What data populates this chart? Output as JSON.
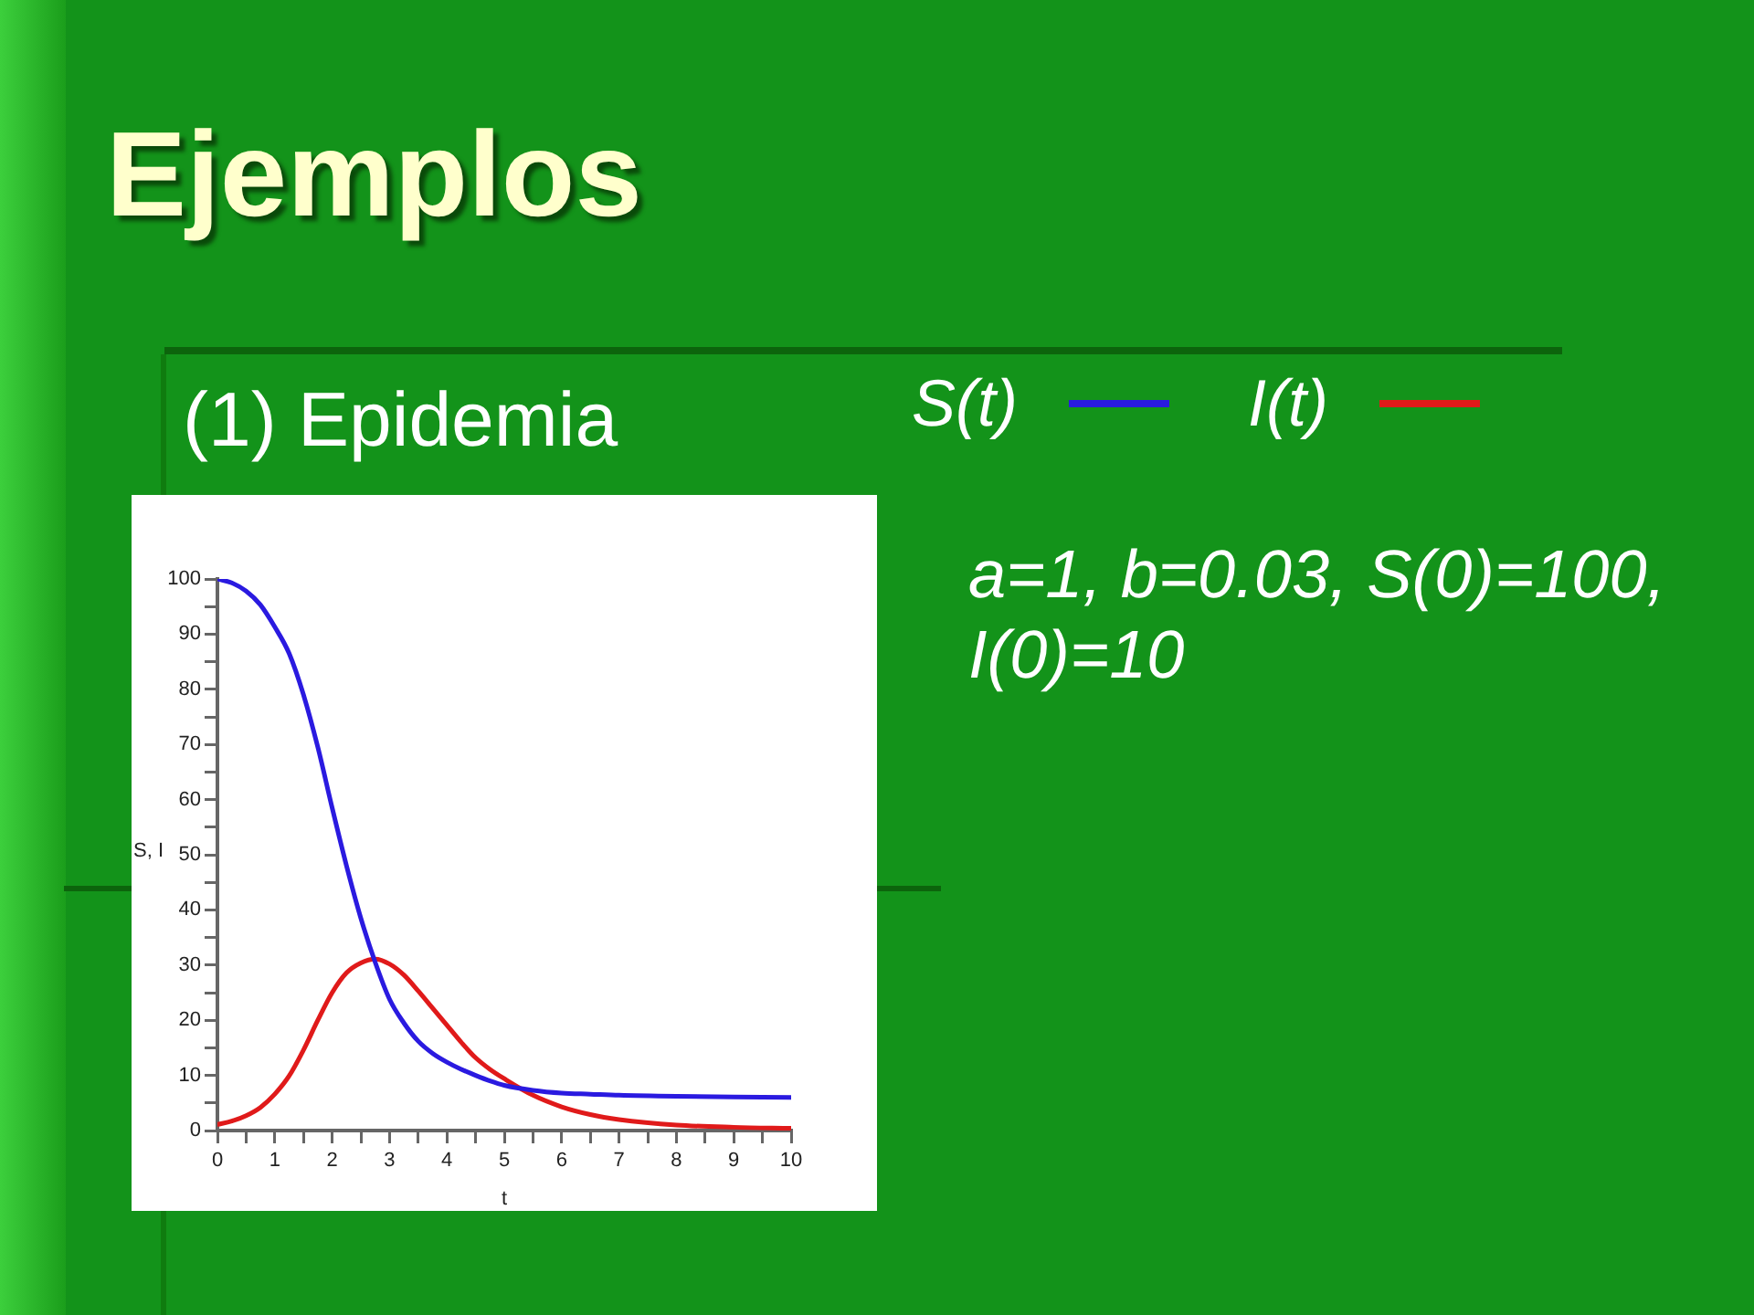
{
  "chart_data": {
    "type": "line",
    "title": "Ejemplos",
    "subtitle": "(1) Epidemia",
    "xlabel": "t",
    "ylabel": "S, I",
    "x": [
      0,
      0.25,
      0.5,
      0.75,
      1,
      1.25,
      1.5,
      1.75,
      2,
      2.25,
      2.5,
      2.75,
      3,
      3.25,
      3.5,
      3.75,
      4,
      4.25,
      4.5,
      4.75,
      5,
      5.5,
      6,
      6.5,
      7,
      8,
      9,
      10
    ],
    "series": [
      {
        "name": "S(t)",
        "color": "#2a1ae0",
        "values": [
          100,
          99.3,
          97.8,
          95.3,
          91.3,
          86.5,
          79,
          69.5,
          58.5,
          48,
          38.5,
          30.5,
          23.8,
          19.5,
          16.2,
          14.0,
          12.4,
          11.1,
          10.0,
          9.0,
          8.2,
          7.3,
          6.8,
          6.6,
          6.4,
          6.2,
          6.1,
          6.0
        ]
      },
      {
        "name": "I(t)",
        "color": "#e01a1a",
        "values": [
          1.1,
          1.7,
          2.7,
          4.2,
          6.6,
          9.9,
          14.6,
          20,
          25,
          28.6,
          30.4,
          31.1,
          30.2,
          28.2,
          25.3,
          22.2,
          19.1,
          16,
          13.2,
          11.1,
          9.4,
          6.4,
          4.3,
          2.9,
          2.0,
          1.0,
          0.6,
          0.4
        ]
      }
    ],
    "xlim": [
      0,
      10
    ],
    "ylim": [
      0,
      100
    ],
    "xticks": [
      0,
      {
        "value": 0.5,
        "label": null
      },
      1,
      {
        "value": 1.5,
        "label": null
      },
      2,
      {
        "value": 2.5,
        "label": null
      },
      3,
      {
        "value": 3.5,
        "label": null
      },
      4,
      {
        "value": 4.5,
        "label": null
      },
      5,
      {
        "value": 5.5,
        "label": null
      },
      6,
      {
        "value": 6.5,
        "label": null
      },
      7,
      {
        "value": 7.5,
        "label": null
      },
      8,
      {
        "value": 8.5,
        "label": null
      },
      9,
      {
        "value": 9.5,
        "label": null
      },
      10
    ],
    "yticks": [
      0,
      {
        "value": 5,
        "label": null
      },
      10,
      {
        "value": 15,
        "label": null
      },
      20,
      {
        "value": 25,
        "label": null
      },
      30,
      {
        "value": 35,
        "label": null
      },
      40,
      {
        "value": 45,
        "label": null
      },
      50,
      {
        "value": 55,
        "label": null
      },
      60,
      {
        "value": 65,
        "label": null
      },
      70,
      {
        "value": 75,
        "label": null
      },
      80,
      {
        "value": 85,
        "label": null
      },
      90,
      {
        "value": 95,
        "label": null
      },
      100
    ],
    "legend": "top right",
    "annotations": [
      "a=1, b=0.03, S(0)=100, I(0)=10"
    ]
  }
}
